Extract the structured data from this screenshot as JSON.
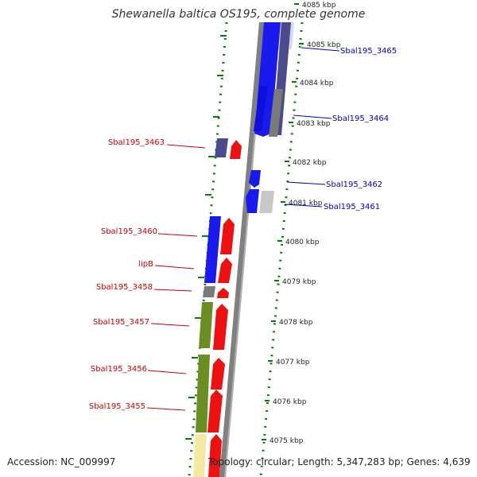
{
  "title": "Shewanella baltica OS195, complete genome",
  "footer": {
    "accession": "Accession: NC_009997",
    "summary": "Topology: circular; Length: 5,347,283 bp; Genes: 4,639"
  },
  "colors": {
    "left_label": "#cc0000",
    "right_label": "#0000cc",
    "ticks": "#008000",
    "blue": "#1a1aee",
    "navy": "#4a4a8c",
    "gray": "#7a7a7a",
    "lightgray": "#c8c8c8",
    "red": "#ee1111",
    "olive": "#6b8e23",
    "yellow": "#f3e9a0",
    "backbone": "#808080"
  },
  "axis": {
    "unit": "kbp",
    "ticks": [
      {
        "label": "4085 kbp"
      },
      {
        "label": "4085 kbp"
      },
      {
        "label": "4084 kbp"
      },
      {
        "label": "4083 kbp"
      },
      {
        "label": "4082 kbp"
      },
      {
        "label": "4081 kbp"
      },
      {
        "label": "4080 kbp"
      },
      {
        "label": "4079 kbp"
      },
      {
        "label": "4078 kbp"
      },
      {
        "label": "4077 kbp"
      },
      {
        "label": "4076 kbp"
      },
      {
        "label": "4075 kbp"
      }
    ]
  },
  "genes_left": [
    {
      "label": "Sbal195_3463"
    },
    {
      "label": "Sbal195_3460"
    },
    {
      "label": "lipB"
    },
    {
      "label": "Sbal195_3458"
    },
    {
      "label": "Sbal195_3457"
    },
    {
      "label": "Sbal195_3456"
    },
    {
      "label": "Sbal195_3455"
    }
  ],
  "genes_right": [
    {
      "label": "Sbal195_3465"
    },
    {
      "label": "Sbal195_3464"
    },
    {
      "label": "Sbal195_3462"
    },
    {
      "label": "Sbal195_3461"
    }
  ]
}
